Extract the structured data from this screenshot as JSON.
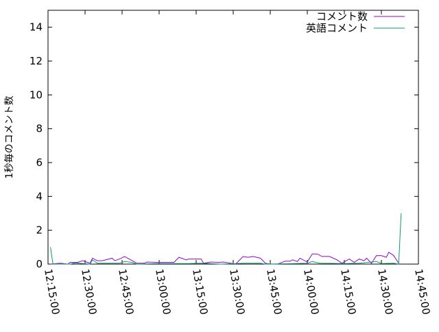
{
  "chart_data": {
    "type": "line",
    "title": "",
    "xlabel": "",
    "ylabel": "1秒毎のコメント数",
    "ylim": [
      0,
      15
    ],
    "xlim": [
      "12:15:00",
      "14:45:00"
    ],
    "grid": false,
    "legend": "top-right",
    "y_ticks": [
      "0",
      "2",
      "4",
      "6",
      "8",
      "10",
      "12",
      "14"
    ],
    "x_ticks": [
      "12:15:00",
      "12:30:00",
      "12:45:00",
      "13:00:00",
      "13:15:00",
      "13:30:00",
      "13:45:00",
      "14:00:00",
      "14:15:00",
      "14:30:00",
      "14:45:00"
    ],
    "series": [
      {
        "name": "コメント数",
        "color": "#9400d3",
        "points": [
          [
            "12:16",
            0
          ],
          [
            "12:20",
            0.05
          ],
          [
            "12:23",
            0
          ],
          [
            "12:24",
            0.1
          ],
          [
            "12:27",
            0.1
          ],
          [
            "12:29",
            0.2
          ],
          [
            "12:32",
            0.05
          ],
          [
            "12:33",
            0.35
          ],
          [
            "12:35",
            0.2
          ],
          [
            "12:37",
            0.2
          ],
          [
            "12:41",
            0.35
          ],
          [
            "12:42",
            0.2
          ],
          [
            "12:44",
            0.3
          ],
          [
            "12:46",
            0.45
          ],
          [
            "12:51",
            0.05
          ],
          [
            "12:54",
            0.05
          ],
          [
            "12:55",
            0.12
          ],
          [
            "12:59",
            0.1
          ],
          [
            "13:06",
            0.1
          ],
          [
            "13:08",
            0.4
          ],
          [
            "13:11",
            0.25
          ],
          [
            "13:12",
            0.3
          ],
          [
            "13:17",
            0.3
          ],
          [
            "13:18",
            0.05
          ],
          [
            "13:21",
            0.12
          ],
          [
            "13:24",
            0.1
          ],
          [
            "13:26",
            0.12
          ],
          [
            "13:29",
            0.05
          ],
          [
            "13:31",
            0
          ],
          [
            "13:34",
            0.45
          ],
          [
            "13:36",
            0.4
          ],
          [
            "13:38",
            0.45
          ],
          [
            "13:41",
            0.35
          ],
          [
            "13:43",
            0.05
          ],
          [
            "13:45",
            0
          ],
          [
            "13:48",
            0
          ],
          [
            "13:51",
            0.17
          ],
          [
            "13:53",
            0.17
          ],
          [
            "13:54",
            0.25
          ],
          [
            "13:56",
            0.15
          ],
          [
            "13:57",
            0.35
          ],
          [
            "14:00",
            0.12
          ],
          [
            "14:02",
            0.6
          ],
          [
            "14:04",
            0.6
          ],
          [
            "14:06",
            0.45
          ],
          [
            "14:09",
            0.45
          ],
          [
            "14:12",
            0.25
          ],
          [
            "14:14",
            0.05
          ],
          [
            "14:17",
            0.3
          ],
          [
            "14:19",
            0.1
          ],
          [
            "14:21",
            0.3
          ],
          [
            "14:23",
            0.2
          ],
          [
            "14:24",
            0.35
          ],
          [
            "14:26",
            0.05
          ],
          [
            "14:28",
            0.5
          ],
          [
            "14:30",
            0.5
          ],
          [
            "14:32",
            0.4
          ],
          [
            "14:33",
            0.7
          ],
          [
            "14:35",
            0.5
          ],
          [
            "14:37",
            0.05
          ]
        ]
      },
      {
        "name": "英語コメント",
        "color": "#009e73",
        "points": [
          [
            "12:16",
            1.0
          ],
          [
            "12:17",
            0
          ],
          [
            "12:24",
            0
          ],
          [
            "12:26",
            0.07
          ],
          [
            "12:32",
            0
          ],
          [
            "12:33",
            0.25
          ],
          [
            "12:35",
            0.05
          ],
          [
            "12:44",
            0.05
          ],
          [
            "12:46",
            0.15
          ],
          [
            "12:49",
            0.1
          ],
          [
            "12:51",
            0
          ],
          [
            "12:59",
            0.03
          ],
          [
            "13:10",
            0.03
          ],
          [
            "13:12",
            0.03
          ],
          [
            "13:17",
            0.05
          ],
          [
            "13:25",
            0
          ],
          [
            "13:35",
            0.05
          ],
          [
            "13:41",
            0.05
          ],
          [
            "13:43",
            0
          ],
          [
            "13:55",
            0.03
          ],
          [
            "14:00",
            0.05
          ],
          [
            "14:02",
            0.15
          ],
          [
            "14:05",
            0.05
          ],
          [
            "14:15",
            0.03
          ],
          [
            "14:21",
            0.05
          ],
          [
            "14:28",
            0.15
          ],
          [
            "14:30",
            0.03
          ],
          [
            "14:35",
            0.05
          ],
          [
            "14:37",
            0
          ],
          [
            "14:38",
            3.0
          ]
        ]
      }
    ]
  }
}
